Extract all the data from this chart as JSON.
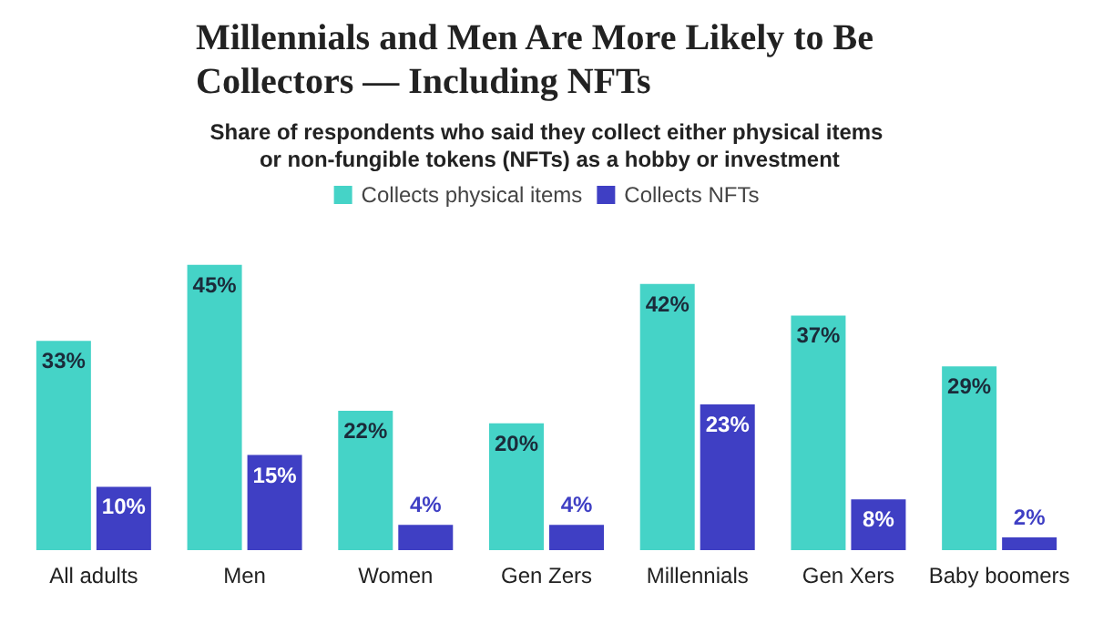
{
  "chart_data": {
    "type": "bar",
    "title": "Millennials and Men Are More Likely to Be Collectors — Including NFTs",
    "subtitle": "Share of respondents who said they collect either physical items or non-fungible tokens (NFTs) as a hobby or investment",
    "categories": [
      "All adults",
      "Men",
      "Women",
      "Gen Zers",
      "Millennials",
      "Gen Xers",
      "Baby boomers"
    ],
    "series": [
      {
        "name": "Collects physical items",
        "color": "#45d3c7",
        "values": [
          33,
          45,
          22,
          20,
          42,
          37,
          29
        ],
        "value_labels": [
          "33%",
          "45%",
          "22%",
          "20%",
          "42%",
          "37%",
          "29%"
        ]
      },
      {
        "name": "Collects NFTs",
        "color": "#3f3fc4",
        "values": [
          10,
          15,
          4,
          4,
          23,
          8,
          2
        ],
        "value_labels": [
          "10%",
          "15%",
          "4%",
          "4%",
          "23%",
          "8%",
          "2%"
        ]
      }
    ],
    "legend": "top"
  }
}
